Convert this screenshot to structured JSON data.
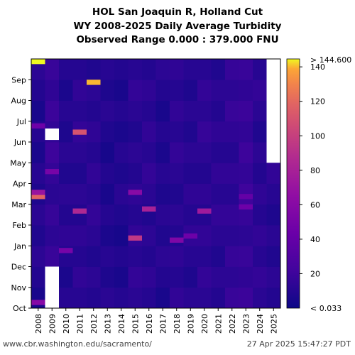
{
  "title_lines": [
    "HOL San Joaquin R, Holland Cut",
    "WY 2008-2025 Daily Average Turbidity",
    "Observed Range 0.000 : 379.000 FNU"
  ],
  "footer": {
    "source": "www.cbr.washington.edu/sacramento/",
    "timestamp": "27 Apr 2025 15:47:27 PDT"
  },
  "chart_data": {
    "type": "heatmap",
    "x_labels": [
      "2008",
      "2009",
      "2010",
      "2011",
      "2012",
      "2013",
      "2014",
      "2015",
      "2016",
      "2017",
      "2018",
      "2019",
      "2020",
      "2021",
      "2022",
      "2023",
      "2024",
      "2025"
    ],
    "y_labels": [
      "Oct",
      "Nov",
      "Dec",
      "Jan",
      "Feb",
      "Mar",
      "Apr",
      "May",
      "Jun",
      "Jul",
      "Aug",
      "Sep"
    ],
    "xlabel": "",
    "ylabel": "",
    "colormap": "plasma",
    "colorbar": {
      "min": 0.033,
      "max": 144.6,
      "ticks": [
        20,
        40,
        60,
        80,
        100,
        120,
        140
      ],
      "top_label": "> 144.600",
      "bottom_label": "< 0.033"
    },
    "base_level": [
      9,
      16,
      10,
      12,
      12,
      8,
      8,
      12,
      12,
      9,
      12,
      11,
      13,
      12,
      14,
      17,
      12,
      11
    ],
    "events": [
      {
        "year": "2008",
        "month": "Sep",
        "value": 145
      },
      {
        "year": "2008",
        "month": "Mar",
        "value": 118
      },
      {
        "year": "2008",
        "month": "Mar",
        "value": 70
      },
      {
        "year": "2008",
        "month": "Jun",
        "value": 45
      },
      {
        "year": "2008",
        "month": "Oct",
        "value": 60
      },
      {
        "year": "2011",
        "month": "Jun",
        "value": 110
      },
      {
        "year": "2011",
        "month": "Feb",
        "value": 85
      },
      {
        "year": "2012",
        "month": "Aug",
        "value": 140
      },
      {
        "year": "2015",
        "month": "Jan",
        "value": 95
      },
      {
        "year": "2015",
        "month": "Mar",
        "value": 60
      },
      {
        "year": "2016",
        "month": "Feb",
        "value": 80
      },
      {
        "year": "2018",
        "month": "Jan",
        "value": 55
      },
      {
        "year": "2019",
        "month": "Jan",
        "value": 45
      },
      {
        "year": "2020",
        "month": "Feb",
        "value": 75
      },
      {
        "year": "2023",
        "month": "Feb",
        "value": 45
      },
      {
        "year": "2023",
        "month": "Mar",
        "value": 40
      },
      {
        "year": "2009",
        "month": "Apr",
        "value": 50
      },
      {
        "year": "2010",
        "month": "Dec",
        "value": 50
      }
    ],
    "missing": [
      {
        "year": "2009",
        "start": "Oct",
        "end": "Nov"
      },
      {
        "year": "2009",
        "start": "Jun",
        "end": "Jun"
      },
      {
        "year": "2025",
        "start": "May",
        "end": "Sep"
      }
    ]
  }
}
